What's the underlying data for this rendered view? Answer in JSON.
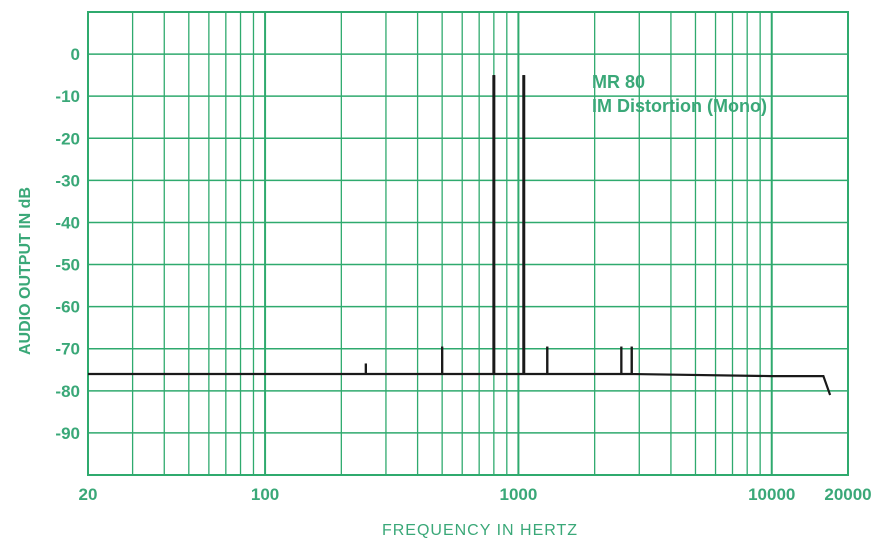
{
  "colors": {
    "grid": "#2faa6e",
    "axis_text": "#3aa878",
    "trace": "#1a1a1a",
    "background": "#ffffff"
  },
  "chart_data": {
    "type": "line",
    "title": "",
    "annotation": [
      "MR 80",
      "IM Distortion (Mono)"
    ],
    "xlabel": "FREQUENCY IN HERTZ",
    "ylabel": "AUDIO OUTPUT IN dB",
    "xscale": "log",
    "xlim": [
      20,
      20000
    ],
    "ylim": [
      -100,
      10
    ],
    "grid": true,
    "x_tick_labels": [
      {
        "value": 20,
        "label": "20"
      },
      {
        "value": 100,
        "label": "100"
      },
      {
        "value": 1000,
        "label": "1000"
      },
      {
        "value": 10000,
        "label": "10000"
      },
      {
        "value": 20000,
        "label": "20000"
      }
    ],
    "y_tick_labels": [
      {
        "value": 0,
        "label": "0"
      },
      {
        "value": -10,
        "label": "-10"
      },
      {
        "value": -20,
        "label": "-20"
      },
      {
        "value": -30,
        "label": "-30"
      },
      {
        "value": -40,
        "label": "-40"
      },
      {
        "value": -50,
        "label": "-50"
      },
      {
        "value": -60,
        "label": "-60"
      },
      {
        "value": -70,
        "label": "-70"
      },
      {
        "value": -80,
        "label": "-80"
      },
      {
        "value": -90,
        "label": "-90"
      }
    ],
    "series": [
      {
        "x": [
          20,
          250,
          250,
          250,
          250,
          500,
          500,
          500,
          500,
          800,
          800,
          800,
          800,
          1050,
          1050,
          1050,
          1050,
          1300,
          1300,
          1300,
          1300,
          2550,
          2550,
          2550,
          2550,
          2800,
          2800,
          2800,
          2800,
          10000,
          16000,
          17000
        ],
        "y": [
          -76,
          -76,
          -76,
          -73.5,
          -76,
          -76,
          -76,
          -69.5,
          -76,
          -76,
          -76,
          -5,
          -76,
          -76,
          -76,
          -5,
          -76,
          -76,
          -76,
          -69.5,
          -76,
          -76,
          -76,
          -69.5,
          -76,
          -76,
          -76,
          -69.5,
          -76,
          -76.5,
          -76.5,
          -81
        ]
      }
    ],
    "peaks": [
      {
        "freq": 250,
        "level": -73.5
      },
      {
        "freq": 500,
        "level": -69.5
      },
      {
        "freq": 800,
        "level": -5
      },
      {
        "freq": 1050,
        "level": -5
      },
      {
        "freq": 1300,
        "level": -69.5
      },
      {
        "freq": 2550,
        "level": -69.5
      },
      {
        "freq": 2800,
        "level": -69.5
      }
    ],
    "noise_floor_db": -76
  }
}
